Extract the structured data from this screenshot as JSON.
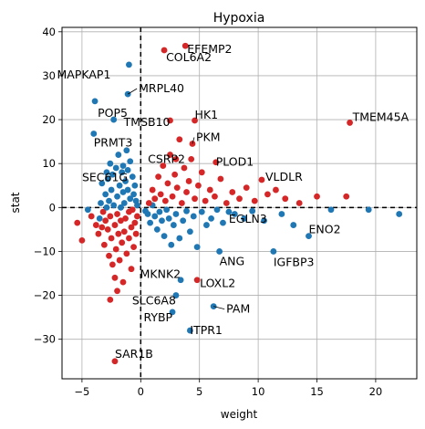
{
  "chart_data": {
    "type": "scatter",
    "title": "Hypoxia",
    "xlabel": "weight",
    "ylabel": "stat",
    "xlim": [
      -6.7,
      23.5
    ],
    "ylim": [
      -39,
      41
    ],
    "xticks": [
      -5,
      0,
      5,
      10,
      15,
      20
    ],
    "xtick_labels": [
      "−5",
      "0",
      "5",
      "10",
      "15",
      "20"
    ],
    "yticks": [
      -30,
      -20,
      -10,
      0,
      10,
      20,
      30,
      40
    ],
    "ytick_labels": [
      "−30",
      "−20",
      "−10",
      "0",
      "10",
      "20",
      "30",
      "40"
    ],
    "grid": true,
    "reference_lines": {
      "x": 0,
      "y": 0,
      "style": "dashed"
    },
    "colors": {
      "positive": "#d62728",
      "negative": "#1f77b4"
    },
    "labeled_points": [
      {
        "label": "EFEMP2",
        "x": 3.8,
        "y": 36.8,
        "color": "#d62728"
      },
      {
        "label": "COL6A2",
        "x": 2.0,
        "y": 35.8,
        "color": "#d62728"
      },
      {
        "label": "MAPKAP1",
        "x": -1.0,
        "y": 32.5,
        "color": "#1f77b4"
      },
      {
        "label": "MRPL40",
        "x": -1.1,
        "y": 25.8,
        "color": "#1f77b4"
      },
      {
        "label": "POP5",
        "x": -3.9,
        "y": 24.2,
        "color": "#1f77b4"
      },
      {
        "label": "TMEM45A",
        "x": 17.8,
        "y": 19.3,
        "color": "#d62728"
      },
      {
        "label": "HK1",
        "x": 4.6,
        "y": 19.8,
        "color": "#d62728"
      },
      {
        "label": "TMSB10",
        "x": 2.5,
        "y": 19.8,
        "color": "#d62728"
      },
      {
        "label": "PRMT3",
        "x": -4.0,
        "y": 16.8,
        "color": "#1f77b4"
      },
      {
        "label": "PKM",
        "x": 4.4,
        "y": 14.5,
        "color": "#d62728"
      },
      {
        "label": "CSRP2",
        "x": 3.0,
        "y": 11.0,
        "color": "#d62728"
      },
      {
        "label": "PLOD1",
        "x": 6.4,
        "y": 10.3,
        "color": "#d62728"
      },
      {
        "label": "SEC61G",
        "x": -1.1,
        "y": 8.5,
        "color": "#1f77b4"
      },
      {
        "label": "VLDLR",
        "x": 10.3,
        "y": 6.3,
        "color": "#d62728"
      },
      {
        "label": "EGLN3",
        "x": 7.5,
        "y": -1.0,
        "color": "#1f77b4"
      },
      {
        "label": "ENO2",
        "x": 14.3,
        "y": -6.5,
        "color": "#1f77b4"
      },
      {
        "label": "ANG",
        "x": 6.7,
        "y": -10.0,
        "color": "#1f77b4"
      },
      {
        "label": "IGFBP3",
        "x": 11.3,
        "y": -10.0,
        "color": "#1f77b4"
      },
      {
        "label": "MKNK2",
        "x": 3.4,
        "y": -16.5,
        "color": "#1f77b4"
      },
      {
        "label": "LOXL2",
        "x": 4.8,
        "y": -16.5,
        "color": "#d62728"
      },
      {
        "label": "SLC6A8",
        "x": 3.0,
        "y": -20.0,
        "color": "#1f77b4"
      },
      {
        "label": "PAM",
        "x": 6.2,
        "y": -22.5,
        "color": "#1f77b4"
      },
      {
        "label": "RYBP",
        "x": 2.7,
        "y": -23.8,
        "color": "#1f77b4"
      },
      {
        "label": "ITPR1",
        "x": 4.2,
        "y": -28.0,
        "color": "#1f77b4"
      },
      {
        "label": "SAR1B",
        "x": -2.2,
        "y": -35.0,
        "color": "#d62728"
      }
    ],
    "points": [
      {
        "x": -5.4,
        "y": -3.5,
        "color": "#d62728"
      },
      {
        "x": -5.0,
        "y": -7.5,
        "color": "#d62728"
      },
      {
        "x": -4.5,
        "y": -0.5,
        "color": "#1f77b4"
      },
      {
        "x": -4.2,
        "y": -2.0,
        "color": "#d62728"
      },
      {
        "x": -3.8,
        "y": -4.0,
        "color": "#d62728"
      },
      {
        "x": -3.6,
        "y": -6.0,
        "color": "#d62728"
      },
      {
        "x": -3.5,
        "y": -2.5,
        "color": "#1f77b4"
      },
      {
        "x": -3.4,
        "y": 1.0,
        "color": "#1f77b4"
      },
      {
        "x": -3.3,
        "y": 5.5,
        "color": "#1f77b4"
      },
      {
        "x": -3.2,
        "y": -1.0,
        "color": "#d62728"
      },
      {
        "x": -3.1,
        "y": -8.5,
        "color": "#d62728"
      },
      {
        "x": -3.0,
        "y": 3.0,
        "color": "#1f77b4"
      },
      {
        "x": -3.0,
        "y": -3.0,
        "color": "#d62728"
      },
      {
        "x": -2.9,
        "y": 8.0,
        "color": "#1f77b4"
      },
      {
        "x": -2.8,
        "y": 6.5,
        "color": "#1f77b4"
      },
      {
        "x": -2.8,
        "y": -5.0,
        "color": "#d62728"
      },
      {
        "x": -2.7,
        "y": 1.5,
        "color": "#1f77b4"
      },
      {
        "x": -2.7,
        "y": -11.0,
        "color": "#d62728"
      },
      {
        "x": -2.6,
        "y": 10.0,
        "color": "#1f77b4"
      },
      {
        "x": -2.6,
        "y": -2.0,
        "color": "#d62728"
      },
      {
        "x": -2.5,
        "y": 4.0,
        "color": "#1f77b4"
      },
      {
        "x": -2.5,
        "y": -7.0,
        "color": "#d62728"
      },
      {
        "x": -2.4,
        "y": 7.5,
        "color": "#1f77b4"
      },
      {
        "x": -2.4,
        "y": -13.0,
        "color": "#d62728"
      },
      {
        "x": -2.3,
        "y": 20.0,
        "color": "#1f77b4"
      },
      {
        "x": -2.3,
        "y": 0.5,
        "color": "#1f77b4"
      },
      {
        "x": -2.2,
        "y": -4.0,
        "color": "#d62728"
      },
      {
        "x": -2.2,
        "y": -16.0,
        "color": "#d62728"
      },
      {
        "x": -2.1,
        "y": 9.0,
        "color": "#1f77b4"
      },
      {
        "x": -2.1,
        "y": -9.5,
        "color": "#d62728"
      },
      {
        "x": -2.0,
        "y": 2.5,
        "color": "#1f77b4"
      },
      {
        "x": -2.0,
        "y": -1.5,
        "color": "#d62728"
      },
      {
        "x": -2.0,
        "y": -19.0,
        "color": "#d62728"
      },
      {
        "x": -1.9,
        "y": 12.0,
        "color": "#1f77b4"
      },
      {
        "x": -1.9,
        "y": -6.0,
        "color": "#d62728"
      },
      {
        "x": -1.8,
        "y": 5.0,
        "color": "#1f77b4"
      },
      {
        "x": -1.8,
        "y": -12.0,
        "color": "#d62728"
      },
      {
        "x": -1.7,
        "y": 0.0,
        "color": "#1f77b4"
      },
      {
        "x": -1.7,
        "y": -3.0,
        "color": "#d62728"
      },
      {
        "x": -1.6,
        "y": 8.0,
        "color": "#1f77b4"
      },
      {
        "x": -1.6,
        "y": -8.0,
        "color": "#d62728"
      },
      {
        "x": -1.5,
        "y": 3.5,
        "color": "#1f77b4"
      },
      {
        "x": -1.5,
        "y": -17.0,
        "color": "#d62728"
      },
      {
        "x": -1.4,
        "y": 1.0,
        "color": "#1f77b4"
      },
      {
        "x": -1.4,
        "y": -5.5,
        "color": "#d62728"
      },
      {
        "x": -1.3,
        "y": 6.0,
        "color": "#1f77b4"
      },
      {
        "x": -1.3,
        "y": -2.5,
        "color": "#d62728"
      },
      {
        "x": -1.2,
        "y": 13.0,
        "color": "#1f77b4"
      },
      {
        "x": -1.2,
        "y": -10.5,
        "color": "#d62728"
      },
      {
        "x": -1.1,
        "y": 4.0,
        "color": "#1f77b4"
      },
      {
        "x": -1.0,
        "y": -1.0,
        "color": "#d62728"
      },
      {
        "x": -1.0,
        "y": -7.0,
        "color": "#d62728"
      },
      {
        "x": -0.9,
        "y": 10.5,
        "color": "#1f77b4"
      },
      {
        "x": -0.9,
        "y": 2.0,
        "color": "#1f77b4"
      },
      {
        "x": -0.8,
        "y": -4.5,
        "color": "#d62728"
      },
      {
        "x": -0.8,
        "y": -14.0,
        "color": "#d62728"
      },
      {
        "x": -0.7,
        "y": 7.0,
        "color": "#1f77b4"
      },
      {
        "x": -0.7,
        "y": -0.5,
        "color": "#d62728"
      },
      {
        "x": -0.6,
        "y": 3.0,
        "color": "#1f77b4"
      },
      {
        "x": -0.6,
        "y": -9.0,
        "color": "#d62728"
      },
      {
        "x": -0.5,
        "y": 5.0,
        "color": "#1f77b4"
      },
      {
        "x": -0.5,
        "y": -3.5,
        "color": "#d62728"
      },
      {
        "x": -0.4,
        "y": 1.5,
        "color": "#1f77b4"
      },
      {
        "x": -0.4,
        "y": -6.0,
        "color": "#d62728"
      },
      {
        "x": -0.3,
        "y": 0.5,
        "color": "#1f77b4"
      },
      {
        "x": -0.3,
        "y": -2.0,
        "color": "#d62728"
      },
      {
        "x": -2.6,
        "y": -21.0,
        "color": "#d62728"
      },
      {
        "x": -3.3,
        "y": -4.5,
        "color": "#d62728"
      },
      {
        "x": -1.5,
        "y": 9.5,
        "color": "#1f77b4"
      },
      {
        "x": -2.9,
        "y": 0.0,
        "color": "#1f77b4"
      },
      {
        "x": 0.4,
        "y": -0.8,
        "color": "#1f77b4"
      },
      {
        "x": 0.6,
        "y": -1.5,
        "color": "#1f77b4"
      },
      {
        "x": 0.8,
        "y": -3.5,
        "color": "#1f77b4"
      },
      {
        "x": 1.0,
        "y": 0.5,
        "color": "#1f77b4"
      },
      {
        "x": 1.2,
        "y": -2.0,
        "color": "#1f77b4"
      },
      {
        "x": 1.4,
        "y": -5.0,
        "color": "#1f77b4"
      },
      {
        "x": 1.6,
        "y": -1.0,
        "color": "#1f77b4"
      },
      {
        "x": 1.8,
        "y": -3.0,
        "color": "#1f77b4"
      },
      {
        "x": 2.0,
        "y": -6.5,
        "color": "#1f77b4"
      },
      {
        "x": 2.2,
        "y": -0.5,
        "color": "#1f77b4"
      },
      {
        "x": 2.4,
        "y": -2.5,
        "color": "#1f77b4"
      },
      {
        "x": 2.6,
        "y": -8.5,
        "color": "#1f77b4"
      },
      {
        "x": 2.8,
        "y": -4.0,
        "color": "#1f77b4"
      },
      {
        "x": 3.0,
        "y": -1.5,
        "color": "#1f77b4"
      },
      {
        "x": 3.3,
        "y": -7.0,
        "color": "#1f77b4"
      },
      {
        "x": 3.6,
        "y": -3.0,
        "color": "#1f77b4"
      },
      {
        "x": 3.9,
        "y": -0.8,
        "color": "#1f77b4"
      },
      {
        "x": 4.2,
        "y": -5.5,
        "color": "#1f77b4"
      },
      {
        "x": 4.5,
        "y": -2.0,
        "color": "#1f77b4"
      },
      {
        "x": 4.8,
        "y": -9.0,
        "color": "#1f77b4"
      },
      {
        "x": 5.2,
        "y": -1.0,
        "color": "#1f77b4"
      },
      {
        "x": 5.6,
        "y": -4.0,
        "color": "#1f77b4"
      },
      {
        "x": 6.0,
        "y": -2.5,
        "color": "#1f77b4"
      },
      {
        "x": 6.5,
        "y": -0.5,
        "color": "#1f77b4"
      },
      {
        "x": 7.0,
        "y": -3.5,
        "color": "#1f77b4"
      },
      {
        "x": 8.0,
        "y": -1.5,
        "color": "#1f77b4"
      },
      {
        "x": 8.8,
        "y": -2.5,
        "color": "#1f77b4"
      },
      {
        "x": 9.5,
        "y": -0.8,
        "color": "#1f77b4"
      },
      {
        "x": 10.5,
        "y": -3.0,
        "color": "#1f77b4"
      },
      {
        "x": 12.0,
        "y": -1.5,
        "color": "#1f77b4"
      },
      {
        "x": 13.0,
        "y": -4.0,
        "color": "#1f77b4"
      },
      {
        "x": 16.2,
        "y": -0.5,
        "color": "#1f77b4"
      },
      {
        "x": 19.4,
        "y": -0.5,
        "color": "#1f77b4"
      },
      {
        "x": 22.0,
        "y": -1.5,
        "color": "#1f77b4"
      },
      {
        "x": 0.7,
        "y": 1.0,
        "color": "#d62728"
      },
      {
        "x": 1.0,
        "y": 4.0,
        "color": "#d62728"
      },
      {
        "x": 1.2,
        "y": 2.0,
        "color": "#d62728"
      },
      {
        "x": 1.5,
        "y": 7.0,
        "color": "#d62728"
      },
      {
        "x": 1.7,
        "y": 3.0,
        "color": "#d62728"
      },
      {
        "x": 1.9,
        "y": 9.5,
        "color": "#d62728"
      },
      {
        "x": 2.1,
        "y": 1.5,
        "color": "#d62728"
      },
      {
        "x": 2.3,
        "y": 5.5,
        "color": "#d62728"
      },
      {
        "x": 2.5,
        "y": 12.0,
        "color": "#d62728"
      },
      {
        "x": 2.7,
        "y": 2.5,
        "color": "#d62728"
      },
      {
        "x": 2.9,
        "y": 7.5,
        "color": "#d62728"
      },
      {
        "x": 3.1,
        "y": 4.5,
        "color": "#d62728"
      },
      {
        "x": 3.3,
        "y": 15.5,
        "color": "#d62728"
      },
      {
        "x": 3.5,
        "y": 1.0,
        "color": "#d62728"
      },
      {
        "x": 3.7,
        "y": 9.0,
        "color": "#d62728"
      },
      {
        "x": 3.9,
        "y": 3.5,
        "color": "#d62728"
      },
      {
        "x": 4.1,
        "y": 6.0,
        "color": "#d62728"
      },
      {
        "x": 4.3,
        "y": 11.0,
        "color": "#d62728"
      },
      {
        "x": 4.6,
        "y": 2.0,
        "color": "#d62728"
      },
      {
        "x": 4.9,
        "y": 5.0,
        "color": "#d62728"
      },
      {
        "x": 5.2,
        "y": 8.0,
        "color": "#d62728"
      },
      {
        "x": 5.5,
        "y": 1.5,
        "color": "#d62728"
      },
      {
        "x": 5.9,
        "y": 4.0,
        "color": "#d62728"
      },
      {
        "x": 6.3,
        "y": 2.5,
        "color": "#d62728"
      },
      {
        "x": 6.8,
        "y": 6.5,
        "color": "#d62728"
      },
      {
        "x": 7.3,
        "y": 1.0,
        "color": "#d62728"
      },
      {
        "x": 7.8,
        "y": 3.5,
        "color": "#d62728"
      },
      {
        "x": 8.4,
        "y": 2.0,
        "color": "#d62728"
      },
      {
        "x": 9.0,
        "y": 4.5,
        "color": "#d62728"
      },
      {
        "x": 9.7,
        "y": 1.5,
        "color": "#d62728"
      },
      {
        "x": 10.8,
        "y": 3.0,
        "color": "#d62728"
      },
      {
        "x": 11.5,
        "y": 4.0,
        "color": "#d62728"
      },
      {
        "x": 12.3,
        "y": 2.0,
        "color": "#d62728"
      },
      {
        "x": 13.5,
        "y": 1.0,
        "color": "#d62728"
      },
      {
        "x": 15.0,
        "y": 2.5,
        "color": "#d62728"
      },
      {
        "x": 17.5,
        "y": 2.5,
        "color": "#d62728"
      }
    ]
  }
}
